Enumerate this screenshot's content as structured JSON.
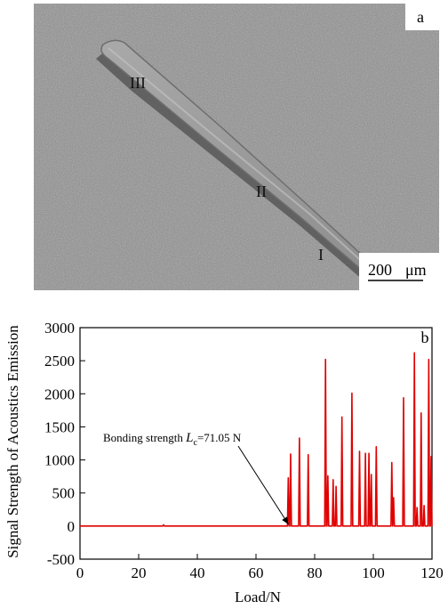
{
  "panel_a": {
    "label": "a",
    "region_labels": [
      "III",
      "II",
      "I"
    ],
    "scale_bar_text": "200",
    "scale_bar_unit": "μm"
  },
  "chart_data": {
    "type": "line",
    "panel_label": "b",
    "xlabel": "Load/N",
    "ylabel": "Signal Strength of Acoustics Emission",
    "xlim": [
      0,
      120
    ],
    "ylim": [
      -500,
      3000
    ],
    "xticks": [
      0,
      20,
      40,
      60,
      80,
      100,
      120
    ],
    "yticks": [
      -500,
      0,
      500,
      1000,
      1500,
      2000,
      2500,
      3000
    ],
    "color": "#e00000",
    "annotation": {
      "text_prefix": "Bonding strength ",
      "symbol": "L",
      "subscript": "c",
      "text_suffix": "=71.05 N",
      "point": [
        71.05,
        0
      ]
    },
    "peaks": [
      {
        "x": 28.5,
        "y": 20
      },
      {
        "x": 71.0,
        "y": 730
      },
      {
        "x": 71.8,
        "y": 1090
      },
      {
        "x": 74.8,
        "y": 1330
      },
      {
        "x": 77.8,
        "y": 1080
      },
      {
        "x": 83.7,
        "y": 2520
      },
      {
        "x": 84.5,
        "y": 760
      },
      {
        "x": 86.3,
        "y": 700
      },
      {
        "x": 87.3,
        "y": 600
      },
      {
        "x": 89.3,
        "y": 1650
      },
      {
        "x": 92.7,
        "y": 2010
      },
      {
        "x": 95.3,
        "y": 1130
      },
      {
        "x": 97.3,
        "y": 1100
      },
      {
        "x": 98.5,
        "y": 1100
      },
      {
        "x": 99.3,
        "y": 780
      },
      {
        "x": 101.0,
        "y": 1200
      },
      {
        "x": 106.3,
        "y": 960
      },
      {
        "x": 106.9,
        "y": 430
      },
      {
        "x": 110.3,
        "y": 1940
      },
      {
        "x": 114.0,
        "y": 2620
      },
      {
        "x": 114.9,
        "y": 280
      },
      {
        "x": 116.3,
        "y": 1710
      },
      {
        "x": 117.3,
        "y": 310
      },
      {
        "x": 118.9,
        "y": 2520
      },
      {
        "x": 119.7,
        "y": 1050
      }
    ]
  }
}
